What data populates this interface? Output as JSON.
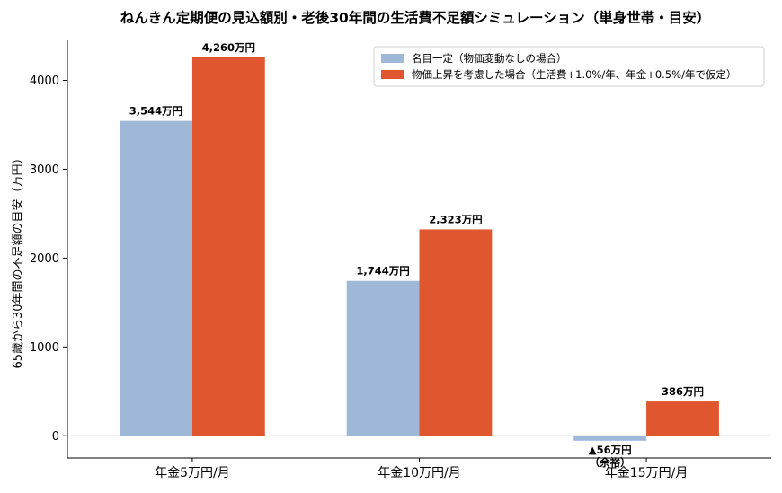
{
  "chart_data": {
    "type": "bar",
    "title": "ねんきん定期便の見込額別・老後30年間の生活費不足額シミュレーション（単身世帯・目安）",
    "xlabel": "",
    "ylabel": "65歳から30年間の不足額の目安（万円）",
    "categories": [
      "年金5万円/月",
      "年金10万円/月",
      "年金15万円/月"
    ],
    "ylim": [
      -250,
      4450
    ],
    "yticks": [
      0,
      1000,
      2000,
      3000,
      4000
    ],
    "yticklabels": [
      "0",
      "1000",
      "2000",
      "3000",
      "4000"
    ],
    "grid": false,
    "legend_position": "top-right",
    "series": [
      {
        "name": "名目一定（物価変動なしの場合）",
        "color": "#a0b8d8",
        "values": [
          3544,
          1744,
          -56
        ],
        "labels": [
          "3,544万円",
          "1,744万円",
          "▲56万円\n（余裕）"
        ]
      },
      {
        "name": "物価上昇を考慮した場合（生活費+1.0%/年、年金+0.5%/年で仮定）",
        "color": "#e0562e",
        "values": [
          4260,
          2323,
          386
        ],
        "labels": [
          "4,260万円",
          "2,323万円",
          "386万円"
        ]
      }
    ]
  }
}
